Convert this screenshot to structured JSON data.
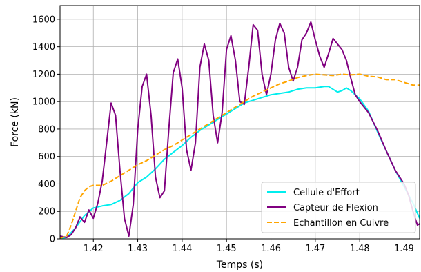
{
  "chart_data": {
    "type": "line",
    "title": "",
    "xlabel": "Temps (s)",
    "ylabel": "Force (kN)",
    "xlim": [
      1.4125,
      1.4935
    ],
    "ylim": [
      0,
      1700
    ],
    "grid": true,
    "legend": "bottom-right",
    "xticks": [
      1.42,
      1.43,
      1.44,
      1.45,
      1.46,
      1.47,
      1.48,
      1.49
    ],
    "xtick_labels": [
      "1.42",
      "1.43",
      "1.44",
      "1.45",
      "1.46",
      "1.47",
      "1.48",
      "1.49"
    ],
    "yticks": [
      0,
      200,
      400,
      600,
      800,
      1000,
      1200,
      1400,
      1600
    ],
    "ytick_labels": [
      "0",
      "200",
      "400",
      "600",
      "800",
      "1000",
      "1200",
      "1400",
      "1600"
    ],
    "series": [
      {
        "name": "Cellule d'Effort",
        "color": "#00eeee",
        "style": "solid",
        "points": [
          [
            1.4125,
            5
          ],
          [
            1.414,
            10
          ],
          [
            1.416,
            80
          ],
          [
            1.418,
            170
          ],
          [
            1.42,
            225
          ],
          [
            1.422,
            240
          ],
          [
            1.424,
            250
          ],
          [
            1.426,
            280
          ],
          [
            1.428,
            330
          ],
          [
            1.43,
            410
          ],
          [
            1.432,
            450
          ],
          [
            1.434,
            510
          ],
          [
            1.436,
            580
          ],
          [
            1.438,
            630
          ],
          [
            1.44,
            680
          ],
          [
            1.442,
            740
          ],
          [
            1.444,
            790
          ],
          [
            1.446,
            830
          ],
          [
            1.448,
            870
          ],
          [
            1.45,
            910
          ],
          [
            1.452,
            950
          ],
          [
            1.454,
            990
          ],
          [
            1.456,
            1010
          ],
          [
            1.458,
            1030
          ],
          [
            1.46,
            1050
          ],
          [
            1.462,
            1060
          ],
          [
            1.464,
            1070
          ],
          [
            1.466,
            1090
          ],
          [
            1.468,
            1100
          ],
          [
            1.47,
            1100
          ],
          [
            1.472,
            1110
          ],
          [
            1.473,
            1110
          ],
          [
            1.474,
            1090
          ],
          [
            1.475,
            1070
          ],
          [
            1.476,
            1080
          ],
          [
            1.477,
            1100
          ],
          [
            1.478,
            1080
          ],
          [
            1.48,
            1020
          ],
          [
            1.482,
            930
          ],
          [
            1.484,
            780
          ],
          [
            1.486,
            640
          ],
          [
            1.488,
            500
          ],
          [
            1.49,
            380
          ],
          [
            1.492,
            260
          ],
          [
            1.4935,
            150
          ]
        ]
      },
      {
        "name": "Capteur de Flexion",
        "color": "#800080",
        "style": "solid",
        "points": [
          [
            1.4125,
            20
          ],
          [
            1.414,
            10
          ],
          [
            1.415,
            30
          ],
          [
            1.416,
            80
          ],
          [
            1.417,
            160
          ],
          [
            1.418,
            120
          ],
          [
            1.419,
            210
          ],
          [
            1.42,
            150
          ],
          [
            1.421,
            260
          ],
          [
            1.422,
            420
          ],
          [
            1.423,
            700
          ],
          [
            1.424,
            990
          ],
          [
            1.425,
            900
          ],
          [
            1.426,
            500
          ],
          [
            1.427,
            150
          ],
          [
            1.428,
            20
          ],
          [
            1.429,
            250
          ],
          [
            1.43,
            800
          ],
          [
            1.431,
            1110
          ],
          [
            1.432,
            1200
          ],
          [
            1.433,
            900
          ],
          [
            1.434,
            450
          ],
          [
            1.435,
            300
          ],
          [
            1.436,
            350
          ],
          [
            1.437,
            800
          ],
          [
            1.438,
            1210
          ],
          [
            1.439,
            1310
          ],
          [
            1.44,
            1100
          ],
          [
            1.441,
            650
          ],
          [
            1.442,
            500
          ],
          [
            1.443,
            700
          ],
          [
            1.444,
            1250
          ],
          [
            1.445,
            1420
          ],
          [
            1.446,
            1300
          ],
          [
            1.447,
            900
          ],
          [
            1.448,
            700
          ],
          [
            1.449,
            920
          ],
          [
            1.45,
            1380
          ],
          [
            1.451,
            1480
          ],
          [
            1.452,
            1300
          ],
          [
            1.453,
            1000
          ],
          [
            1.454,
            980
          ],
          [
            1.455,
            1250
          ],
          [
            1.456,
            1560
          ],
          [
            1.457,
            1520
          ],
          [
            1.458,
            1200
          ],
          [
            1.459,
            1050
          ],
          [
            1.46,
            1200
          ],
          [
            1.461,
            1450
          ],
          [
            1.462,
            1570
          ],
          [
            1.463,
            1500
          ],
          [
            1.464,
            1250
          ],
          [
            1.465,
            1150
          ],
          [
            1.466,
            1250
          ],
          [
            1.467,
            1450
          ],
          [
            1.468,
            1500
          ],
          [
            1.469,
            1580
          ],
          [
            1.47,
            1450
          ],
          [
            1.471,
            1330
          ],
          [
            1.472,
            1250
          ],
          [
            1.473,
            1350
          ],
          [
            1.474,
            1460
          ],
          [
            1.475,
            1420
          ],
          [
            1.476,
            1380
          ],
          [
            1.477,
            1300
          ],
          [
            1.478,
            1170
          ],
          [
            1.479,
            1050
          ],
          [
            1.48,
            1000
          ],
          [
            1.482,
            920
          ],
          [
            1.484,
            790
          ],
          [
            1.486,
            640
          ],
          [
            1.488,
            500
          ],
          [
            1.49,
            400
          ],
          [
            1.491,
            320
          ],
          [
            1.492,
            200
          ],
          [
            1.493,
            100
          ],
          [
            1.4935,
            110
          ]
        ]
      },
      {
        "name": "Echantillon en Cuivre",
        "color": "#ffa500",
        "style": "dashed",
        "points": [
          [
            1.4125,
            5
          ],
          [
            1.414,
            20
          ],
          [
            1.415,
            100
          ],
          [
            1.416,
            200
          ],
          [
            1.417,
            300
          ],
          [
            1.418,
            350
          ],
          [
            1.419,
            380
          ],
          [
            1.42,
            390
          ],
          [
            1.422,
            390
          ],
          [
            1.424,
            420
          ],
          [
            1.426,
            460
          ],
          [
            1.428,
            500
          ],
          [
            1.43,
            540
          ],
          [
            1.432,
            570
          ],
          [
            1.434,
            610
          ],
          [
            1.436,
            650
          ],
          [
            1.438,
            680
          ],
          [
            1.44,
            720
          ],
          [
            1.442,
            760
          ],
          [
            1.444,
            800
          ],
          [
            1.446,
            840
          ],
          [
            1.448,
            880
          ],
          [
            1.45,
            920
          ],
          [
            1.452,
            960
          ],
          [
            1.454,
            1000
          ],
          [
            1.456,
            1040
          ],
          [
            1.458,
            1070
          ],
          [
            1.46,
            1100
          ],
          [
            1.462,
            1130
          ],
          [
            1.464,
            1150
          ],
          [
            1.466,
            1175
          ],
          [
            1.468,
            1190
          ],
          [
            1.47,
            1200
          ],
          [
            1.472,
            1195
          ],
          [
            1.474,
            1190
          ],
          [
            1.476,
            1200
          ],
          [
            1.478,
            1195
          ],
          [
            1.48,
            1200
          ],
          [
            1.482,
            1185
          ],
          [
            1.484,
            1180
          ],
          [
            1.486,
            1160
          ],
          [
            1.488,
            1160
          ],
          [
            1.49,
            1140
          ],
          [
            1.492,
            1120
          ],
          [
            1.4935,
            1120
          ]
        ]
      }
    ]
  }
}
